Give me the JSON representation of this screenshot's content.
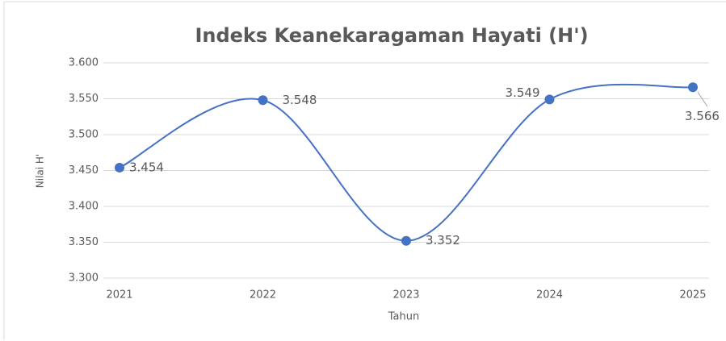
{
  "chart_data": {
    "type": "line",
    "title": "Indeks Keanekaragaman Hayati (H')",
    "x_label": "Tahun",
    "y_label": "Nilai H'",
    "x": [
      2021,
      2022,
      2023,
      2024,
      2025
    ],
    "xlim": [
      2021,
      2025
    ],
    "xticks": [
      2021,
      2022,
      2023,
      2024,
      2025
    ],
    "values": [
      3.454,
      3.548,
      3.352,
      3.549,
      3.566
    ],
    "color": "#4472c4",
    "smooth": true,
    "ylim": [
      3.3,
      3.6
    ],
    "yticks": [
      {
        "value": 3.3,
        "label": "3.300"
      },
      {
        "value": 3.35,
        "label": "3.350"
      },
      {
        "value": 3.4,
        "label": "3.400"
      },
      {
        "value": 3.45,
        "label": "3.450"
      },
      {
        "value": 3.5,
        "label": "3.500"
      },
      {
        "value": 3.55,
        "label": "3.550"
      },
      {
        "value": 3.6,
        "label": "3.600"
      }
    ],
    "grid": true
  }
}
